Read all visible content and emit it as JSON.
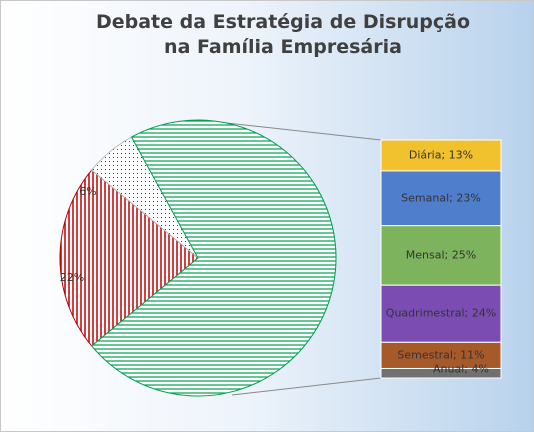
{
  "chart_data": {
    "type": "bar-of-pie",
    "title": "Debate da Estratégia de Disrupção na Família Empresária",
    "pie": {
      "values": [
        22,
        6,
        72
      ],
      "value_labels": [
        "22%",
        "6%",
        null
      ],
      "colors": [
        "#c00000",
        "#404040",
        "#00a050"
      ],
      "patterns": [
        "vertical",
        "dots",
        "horizontal"
      ]
    },
    "bar": {
      "categories": [
        "Diária",
        "Semanal",
        "Mensal",
        "Quadrimestral",
        "Semestral",
        "Anual"
      ],
      "values": [
        13,
        23,
        25,
        24,
        11,
        4
      ],
      "value_labels": [
        "Diária; 13%",
        "Semanal; 23%",
        "Mensal; 25%",
        "Quadrimestral; 24%",
        "Semestral; 11%",
        "Anual; 4%"
      ],
      "colors": [
        "#f2c12e",
        "#4f7fcc",
        "#7db35c",
        "#7b4db3",
        "#a65a2a",
        "#707070"
      ]
    }
  }
}
